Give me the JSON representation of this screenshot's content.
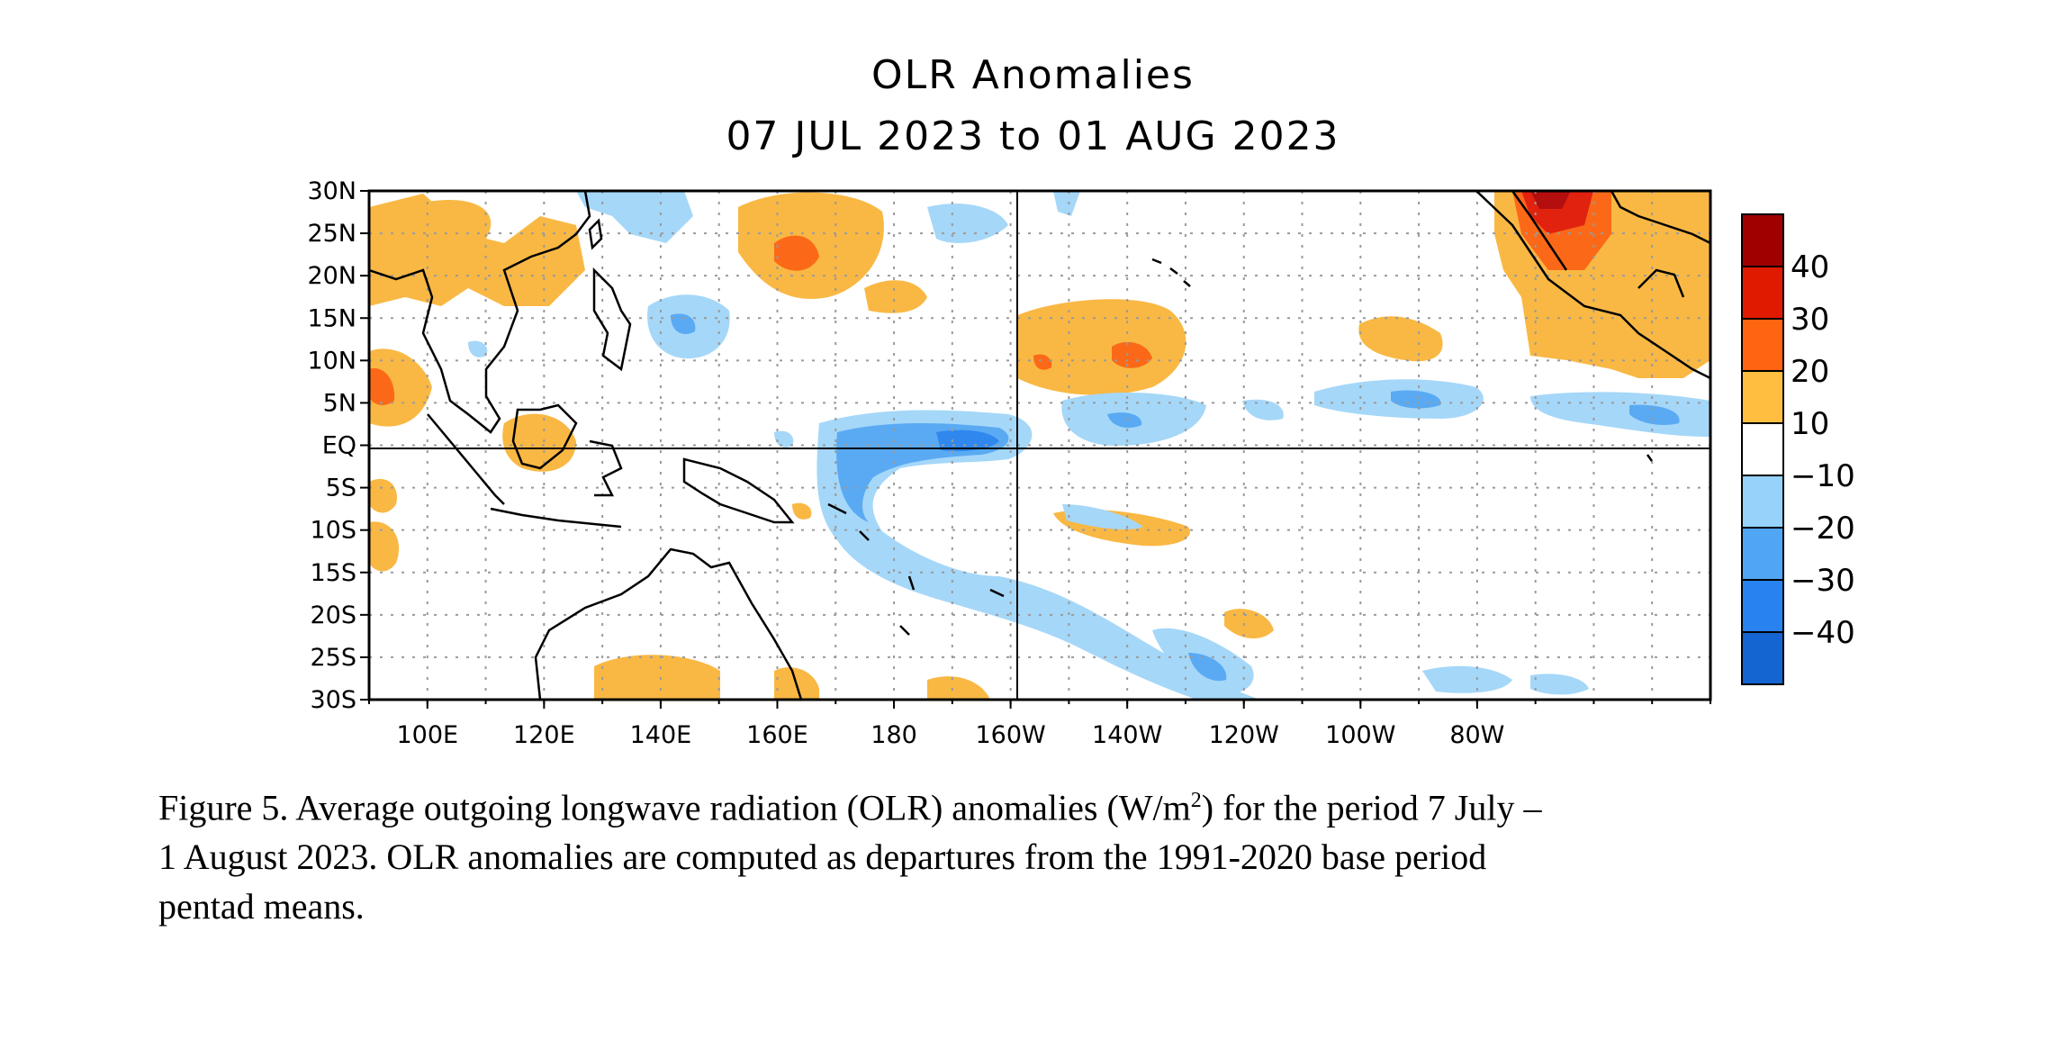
{
  "title": "OLR Anomalies",
  "subtitle": "07 JUL 2023 to 01 AUG 2023",
  "lat_labels": [
    "30N",
    "25N",
    "20N",
    "15N",
    "10N",
    "5N",
    "EQ",
    "5S",
    "10S",
    "15S",
    "20S",
    "25S",
    "30S"
  ],
  "lon_labels": [
    "100E",
    "120E",
    "140E",
    "160E",
    "180",
    "160W",
    "140W",
    "120W",
    "100W",
    "80W"
  ],
  "colorbar": {
    "labels": [
      "40",
      "30",
      "20",
      "10",
      "−10",
      "−20",
      "−30",
      "−40"
    ],
    "colors": [
      "#a00000",
      "#e01a00",
      "#ff6410",
      "#ffbe40",
      "#ffffff",
      "#96d2fa",
      "#50a5f5",
      "#2882f0",
      "#1464d2"
    ]
  },
  "colors": {
    "pos_low": "#f9b844",
    "pos_mid": "#fb6918",
    "pos_high": "#e0220e",
    "pos_max": "#b40e0e",
    "neg_low": "#a5d7f8",
    "neg_mid": "#5aaaf3",
    "neg_high": "#3088ee"
  },
  "caption": {
    "line1_a": "Figure 5. Average outgoing longwave radiation (OLR) anomalies (W/m",
    "sup": "2",
    "line1_b": ") for the period 7 July –",
    "line2": "1 August 2023.  OLR anomalies are computed as departures from the 1991-2020 base period",
    "line3": "pentad means."
  }
}
